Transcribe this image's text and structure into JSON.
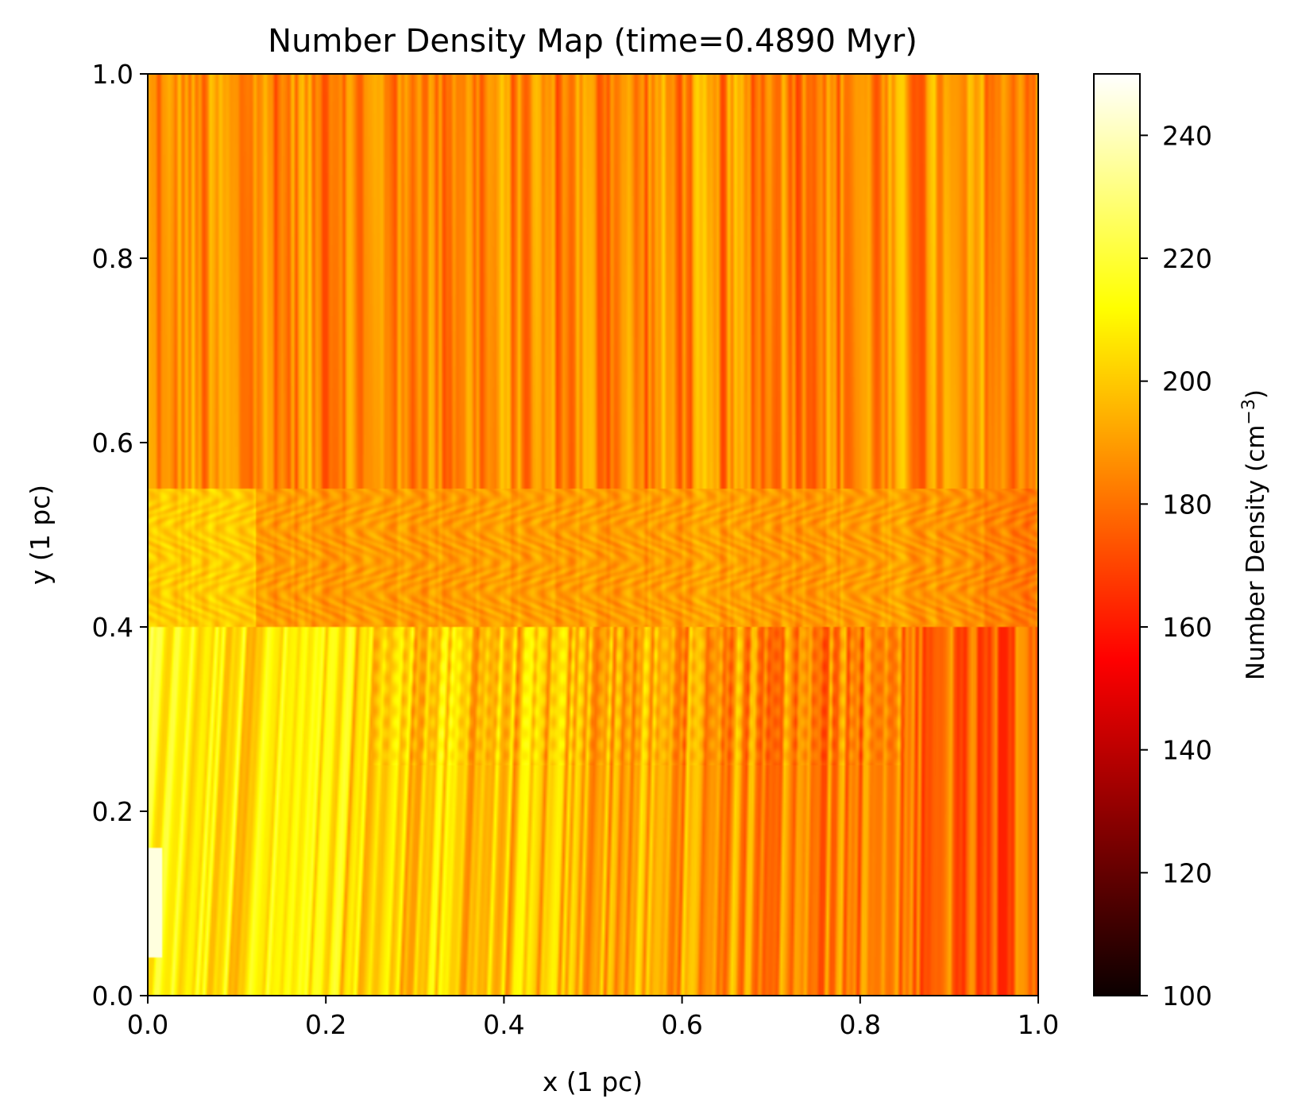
{
  "chart_data": {
    "type": "heatmap",
    "title": "Number Density Map (time=0.4890 Myr)",
    "xlabel": "x (1 pc)",
    "ylabel": "y (1 pc)",
    "xlim": [
      0.0,
      1.0
    ],
    "ylim": [
      0.0,
      1.0
    ],
    "xticks": [
      "0.0",
      "0.2",
      "0.4",
      "0.6",
      "0.8",
      "1.0"
    ],
    "yticks": [
      "0.0",
      "0.2",
      "0.4",
      "0.6",
      "0.8",
      "1.0"
    ],
    "colorbar": {
      "label_main": "Number Density (cm",
      "label_sup": "−3",
      "label_close": ")",
      "range": [
        100,
        250
      ],
      "ticks": [
        "100",
        "120",
        "140",
        "160",
        "180",
        "200",
        "220",
        "240"
      ],
      "colormap": "hot"
    },
    "field_summary": {
      "upper_region_y_0.6_to_1.0": "vertical streaks, values ~175-200",
      "interface_band_y_0.4_to_0.55": "wavy striated band, values ~180-200",
      "lower_region_y_0.0_to_0.4": "vertical streaks, brighter on the left (~205-230), darker toward the right (~175-185)",
      "left_edge_x_0_y_0.05_to_0.15": "peak near white (~245)"
    }
  },
  "colors": {
    "axis": "#000000",
    "background": "#ffffff"
  }
}
